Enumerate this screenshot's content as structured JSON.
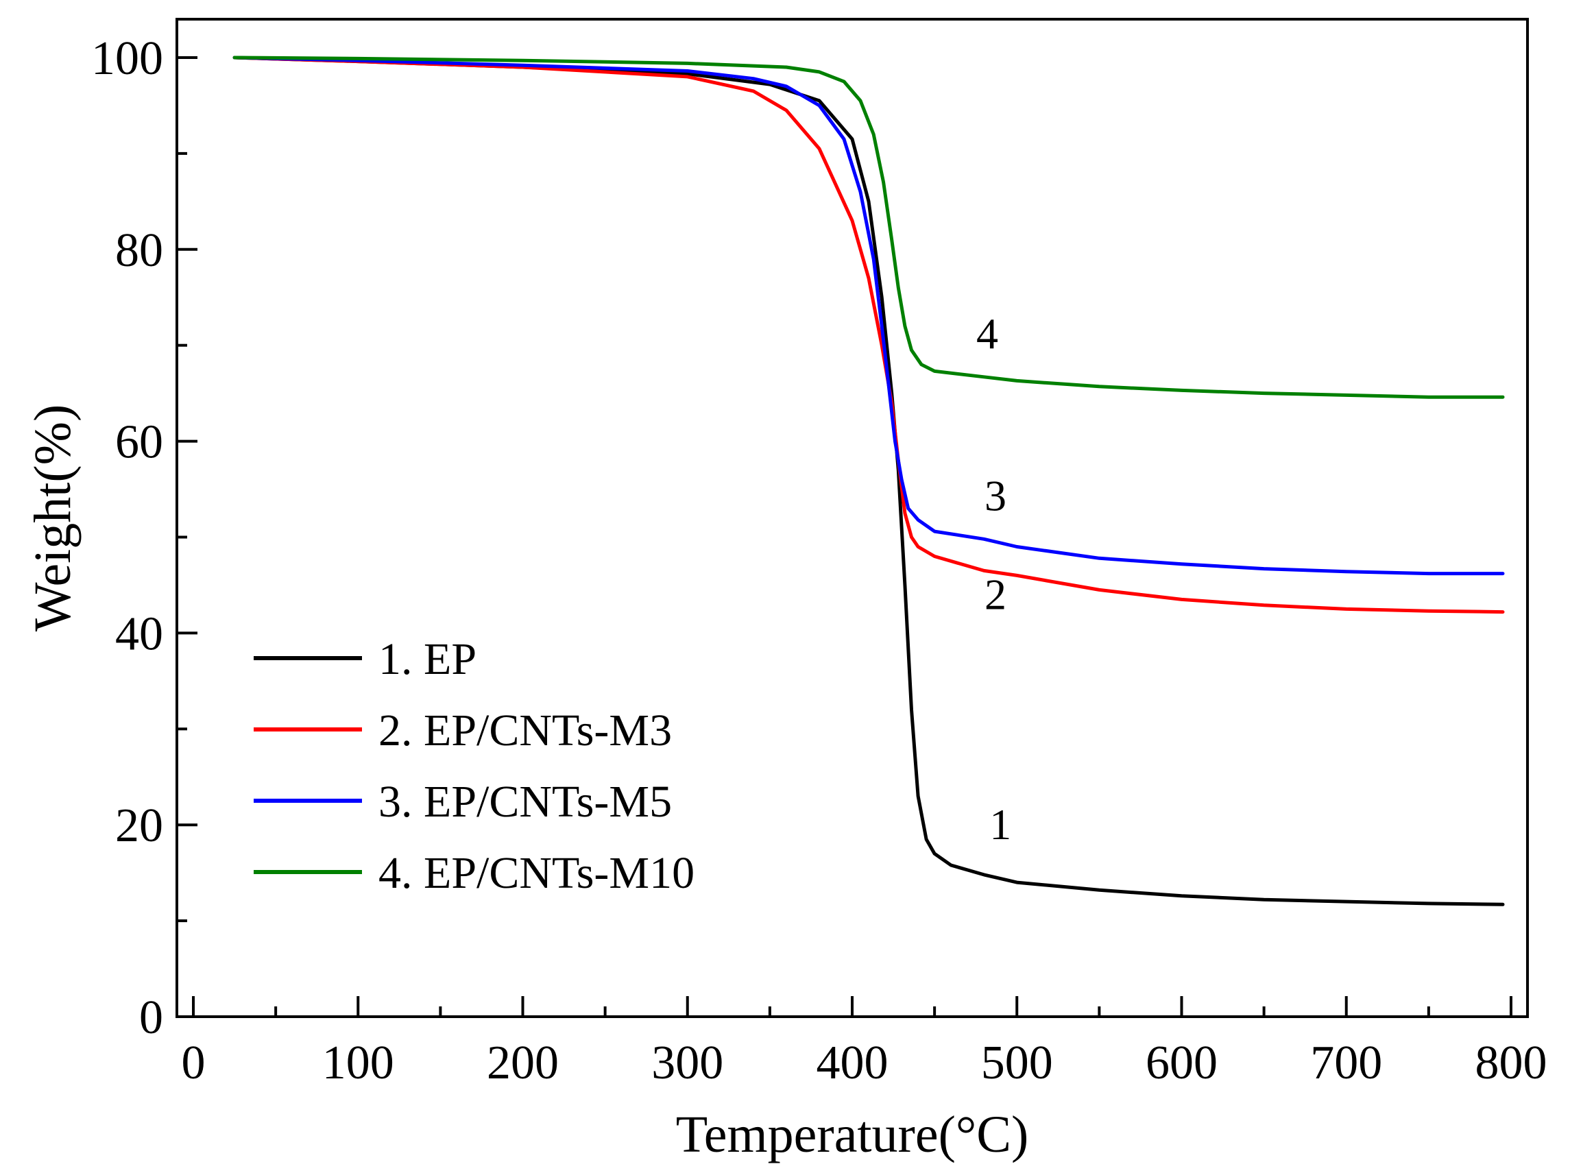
{
  "chart_data": {
    "type": "line",
    "title": "",
    "xlabel": "Temperature(°C)",
    "ylabel": "Weight(%)",
    "xlim": [
      -10,
      810
    ],
    "ylim": [
      0,
      104
    ],
    "xticks": [
      0,
      100,
      200,
      300,
      400,
      500,
      600,
      700,
      800
    ],
    "yticks": [
      0,
      20,
      40,
      60,
      80,
      100
    ],
    "legend_position": "bottom-left",
    "series": [
      {
        "name": "1. EP",
        "curve_label": "1",
        "color": "#000000",
        "points": [
          [
            25,
            100
          ],
          [
            100,
            99.6
          ],
          [
            200,
            99.0
          ],
          [
            300,
            98.3
          ],
          [
            350,
            97.2
          ],
          [
            380,
            95.5
          ],
          [
            400,
            91.5
          ],
          [
            410,
            85
          ],
          [
            418,
            75
          ],
          [
            424,
            65
          ],
          [
            428,
            57
          ],
          [
            432,
            45
          ],
          [
            436,
            32
          ],
          [
            440,
            23
          ],
          [
            445,
            18.5
          ],
          [
            450,
            17
          ],
          [
            460,
            15.8
          ],
          [
            480,
            14.8
          ],
          [
            500,
            14.0
          ],
          [
            550,
            13.2
          ],
          [
            600,
            12.6
          ],
          [
            650,
            12.2
          ],
          [
            700,
            12.0
          ],
          [
            750,
            11.8
          ],
          [
            795,
            11.7
          ]
        ],
        "label_point": [
          490,
          18.5
        ]
      },
      {
        "name": "2. EP/CNTs-M3",
        "curve_label": "2",
        "color": "#ff0000",
        "points": [
          [
            25,
            100
          ],
          [
            100,
            99.6
          ],
          [
            200,
            99.0
          ],
          [
            300,
            98.0
          ],
          [
            340,
            96.5
          ],
          [
            360,
            94.5
          ],
          [
            380,
            90.5
          ],
          [
            400,
            83
          ],
          [
            410,
            77
          ],
          [
            418,
            70
          ],
          [
            424,
            64
          ],
          [
            428,
            58
          ],
          [
            432,
            52.5
          ],
          [
            436,
            50
          ],
          [
            440,
            49
          ],
          [
            450,
            48
          ],
          [
            480,
            46.5
          ],
          [
            500,
            46.0
          ],
          [
            550,
            44.5
          ],
          [
            600,
            43.5
          ],
          [
            650,
            42.9
          ],
          [
            700,
            42.5
          ],
          [
            750,
            42.3
          ],
          [
            795,
            42.2
          ]
        ],
        "label_point": [
          487,
          42.5
        ]
      },
      {
        "name": "3. EP/CNTs-M5",
        "curve_label": "3",
        "color": "#0000ff",
        "points": [
          [
            25,
            100
          ],
          [
            100,
            99.7
          ],
          [
            200,
            99.2
          ],
          [
            300,
            98.6
          ],
          [
            340,
            97.8
          ],
          [
            360,
            97.0
          ],
          [
            380,
            95.0
          ],
          [
            395,
            91.5
          ],
          [
            405,
            86
          ],
          [
            413,
            79
          ],
          [
            418,
            72
          ],
          [
            422,
            66
          ],
          [
            426,
            60
          ],
          [
            430,
            56
          ],
          [
            434,
            53
          ],
          [
            440,
            51.8
          ],
          [
            450,
            50.6
          ],
          [
            480,
            49.8
          ],
          [
            500,
            49.0
          ],
          [
            550,
            47.8
          ],
          [
            600,
            47.2
          ],
          [
            650,
            46.7
          ],
          [
            700,
            46.4
          ],
          [
            750,
            46.2
          ],
          [
            795,
            46.2
          ]
        ],
        "label_point": [
          487,
          52.8
        ]
      },
      {
        "name": "4. EP/CNTs-M10",
        "curve_label": "4",
        "color": "#008000",
        "points": [
          [
            25,
            100
          ],
          [
            100,
            99.9
          ],
          [
            200,
            99.7
          ],
          [
            300,
            99.4
          ],
          [
            360,
            99.0
          ],
          [
            380,
            98.5
          ],
          [
            395,
            97.5
          ],
          [
            405,
            95.5
          ],
          [
            413,
            92
          ],
          [
            419,
            87
          ],
          [
            424,
            81
          ],
          [
            428,
            76
          ],
          [
            432,
            72
          ],
          [
            436,
            69.5
          ],
          [
            442,
            68
          ],
          [
            450,
            67.3
          ],
          [
            480,
            66.7
          ],
          [
            500,
            66.3
          ],
          [
            550,
            65.7
          ],
          [
            600,
            65.3
          ],
          [
            650,
            65.0
          ],
          [
            700,
            64.8
          ],
          [
            750,
            64.6
          ],
          [
            795,
            64.6
          ]
        ],
        "label_point": [
          482,
          69.7
        ]
      }
    ]
  }
}
